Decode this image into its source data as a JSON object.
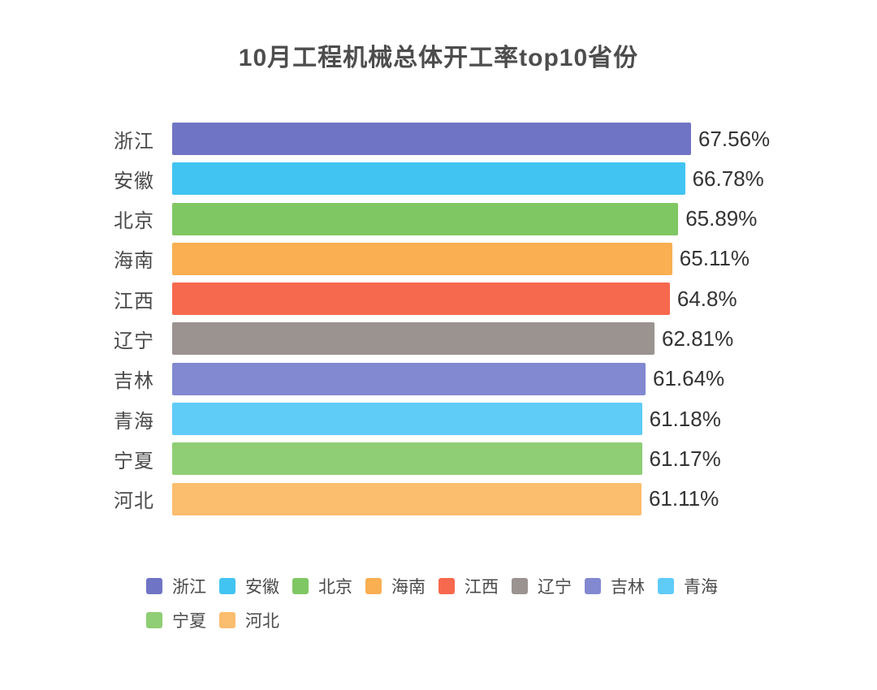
{
  "chart_data": {
    "type": "bar",
    "orientation": "horizontal",
    "title": "10月工程机械总体开工率top10省份",
    "categories": [
      "浙江",
      "安徽",
      "北京",
      "海南",
      "江西",
      "辽宁",
      "吉林",
      "青海",
      "宁夏",
      "河北"
    ],
    "values": [
      67.56,
      66.78,
      65.89,
      65.11,
      64.8,
      62.81,
      61.64,
      61.18,
      61.17,
      61.11
    ],
    "value_labels": [
      "67.56%",
      "66.78%",
      "65.89%",
      "65.11%",
      "64.8%",
      "62.81%",
      "61.64%",
      "61.18%",
      "61.17%",
      "61.11%"
    ],
    "bar_colors": [
      "#6F74C4",
      "#42C4F2",
      "#7FC763",
      "#F9AF52",
      "#F7694E",
      "#9A9390",
      "#8289D0",
      "#5FCBF7",
      "#8FCE74",
      "#FBBD6E"
    ],
    "xlim": [
      0,
      71.5
    ],
    "grid": false,
    "background": "#ffffff",
    "legend": {
      "position": "bottom",
      "items": [
        "浙江",
        "安徽",
        "北京",
        "海南",
        "江西",
        "辽宁",
        "吉林",
        "青海",
        "宁夏",
        "河北"
      ]
    },
    "text_colors": {
      "title": "#4d4d4d",
      "category": "#4a4a4a",
      "value": "#333333",
      "legend": "#4a4a4a"
    }
  }
}
